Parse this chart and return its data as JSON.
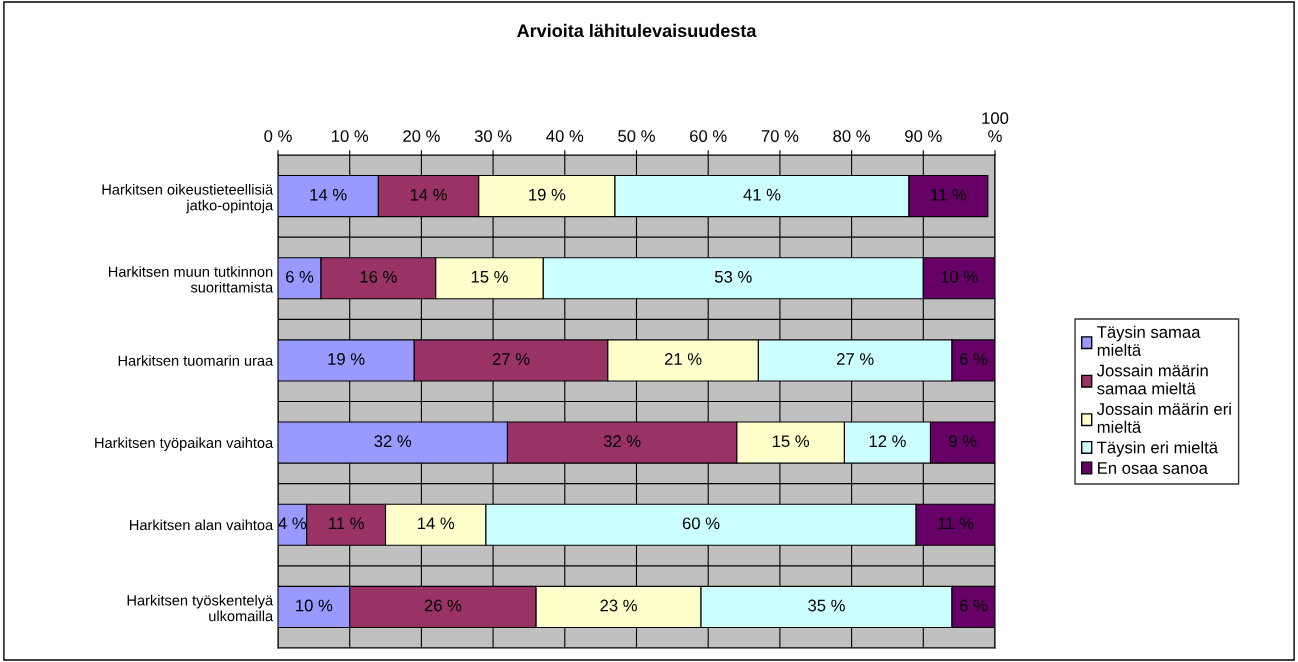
{
  "chart_data": {
    "type": "bar",
    "orientation": "horizontal",
    "stacked": true,
    "title": "Arvioita lähitulevaisuudesta",
    "categories": [
      "Harkitsen oikeustieteellisiä\njatko-opintoja",
      "Harkitsen muun tutkinnon\nsuorittamista",
      "Harkitsen tuomarin uraa",
      "Harkitsen työpaikan vaihtoa",
      "Harkitsen alan vaihtoa",
      "Harkitsen työskentelyä\nulkomailla"
    ],
    "series": [
      {
        "name": "Täysin samaa\nmieltä",
        "color": "#9999ff",
        "values": [
          14,
          6,
          19,
          32,
          4,
          10
        ],
        "value_labels": [
          "14 %",
          "6 %",
          "19 %",
          "32 %",
          "4 %",
          "10 %"
        ]
      },
      {
        "name": "Jossain määrin\nsamaa mieltä",
        "color": "#993366",
        "values": [
          14,
          16,
          27,
          32,
          11,
          26
        ],
        "value_labels": [
          "14 %",
          "16 %",
          "27 %",
          "32 %",
          "11 %",
          "26 %"
        ]
      },
      {
        "name": "Jossain määrin eri\nmieltä",
        "color": "#ffffcc",
        "values": [
          19,
          15,
          21,
          15,
          14,
          23
        ],
        "value_labels": [
          "19 %",
          "15 %",
          "21 %",
          "15 %",
          "14 %",
          "23 %"
        ]
      },
      {
        "name": "Täysin eri mieltä",
        "color": "#ccffff",
        "values": [
          41,
          53,
          27,
          12,
          60,
          35
        ],
        "value_labels": [
          "41 %",
          "53 %",
          "27 %",
          "12 %",
          "60 %",
          "35 %"
        ]
      },
      {
        "name": "En osaa sanoa",
        "color": "#660066",
        "values": [
          11,
          10,
          6,
          9,
          11,
          6
        ],
        "value_labels": [
          "11 %",
          "10 %",
          "6 %",
          "9 %",
          "11 %",
          "6 %"
        ]
      }
    ],
    "xlim": [
      0,
      100
    ],
    "xticks": [
      {
        "value": 0,
        "label": "0 %"
      },
      {
        "value": 10,
        "label": "10 %"
      },
      {
        "value": 20,
        "label": "20 %"
      },
      {
        "value": 30,
        "label": "30 %"
      },
      {
        "value": 40,
        "label": "40 %"
      },
      {
        "value": 50,
        "label": "50 %"
      },
      {
        "value": 60,
        "label": "60 %"
      },
      {
        "value": 70,
        "label": "70 %"
      },
      {
        "value": 80,
        "label": "80 %"
      },
      {
        "value": 90,
        "label": "90 %"
      },
      {
        "value": 100,
        "label": "100\n%"
      }
    ],
    "grid": true,
    "legend": "right"
  }
}
